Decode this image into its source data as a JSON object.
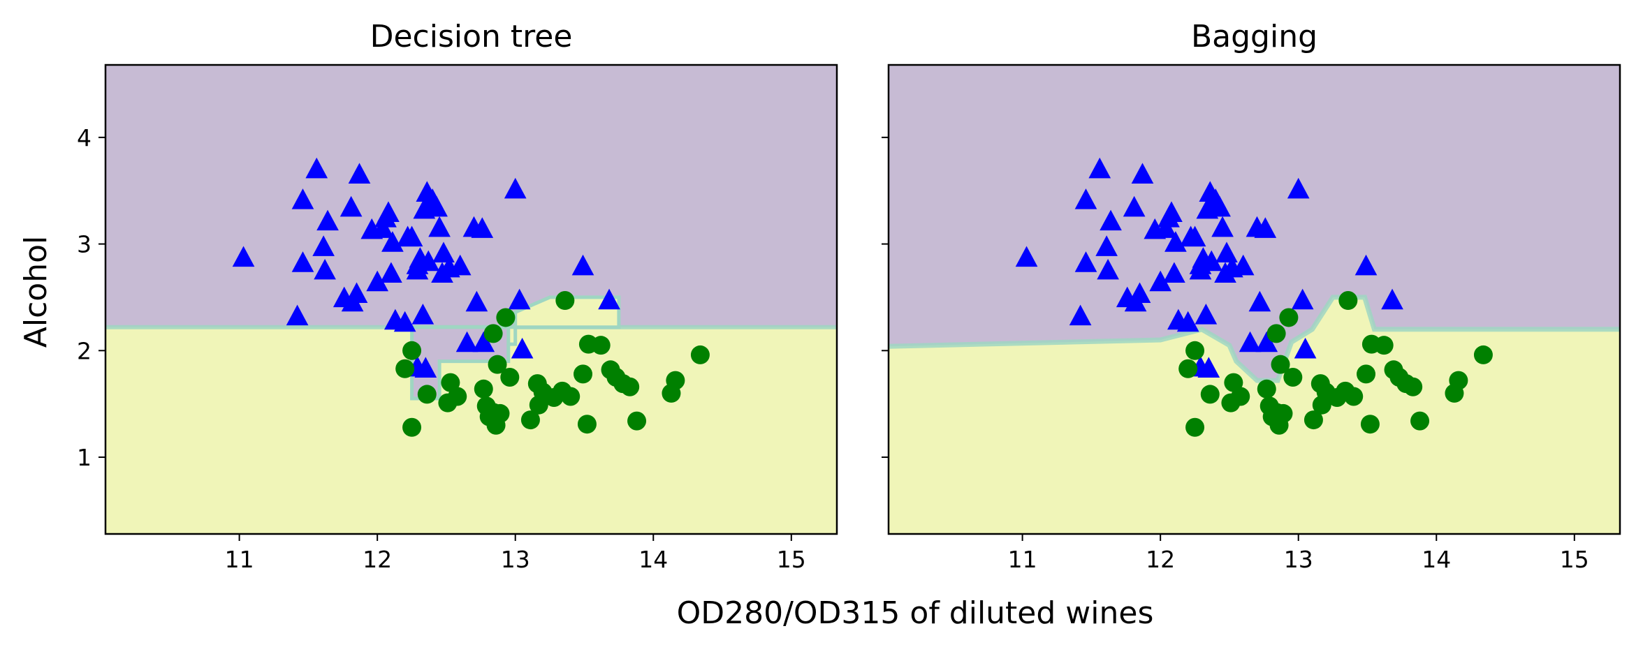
{
  "figure": {
    "xlabel": "OD280/OD315 of diluted wines",
    "ylabel": "Alcohol"
  },
  "colors": {
    "class0_region": "#c7bbd4",
    "class1_region": "#f0f5b8",
    "boundary_band": "#9fd6c2",
    "class0_marker": "#0000ff",
    "class1_marker": "#008000",
    "axes_edge": "#000000"
  },
  "chart_data": [
    {
      "type": "scatter",
      "title": "Decision tree",
      "xlim": [
        10.03,
        15.33
      ],
      "ylim": [
        0.28,
        4.68
      ],
      "xticks": [
        11,
        12,
        13,
        14,
        15
      ],
      "yticks": [
        1,
        2,
        3,
        4
      ],
      "regions": {
        "baseline_split_y": 2.22,
        "class0_above_baseline": true,
        "class1_bump_polygon": [
          [
            12.45,
            2.22
          ],
          [
            12.45,
            2.06
          ],
          [
            13.0,
            2.06
          ],
          [
            13.0,
            2.36
          ],
          [
            13.25,
            2.5
          ],
          [
            13.75,
            2.5
          ],
          [
            13.75,
            2.22
          ]
        ],
        "class0_notch_polygon": [
          [
            12.25,
            2.22
          ],
          [
            12.25,
            1.55
          ],
          [
            12.45,
            1.55
          ],
          [
            12.45,
            1.9
          ],
          [
            12.95,
            1.9
          ],
          [
            12.95,
            2.22
          ]
        ]
      },
      "series": [
        {
          "marker": "triangle",
          "points": [
            [
              11.03,
              2.86
            ],
            [
              11.42,
              2.31
            ],
            [
              11.46,
              3.4
            ],
            [
              11.56,
              3.69
            ],
            [
              11.61,
              2.96
            ],
            [
              11.64,
              3.2
            ],
            [
              11.46,
              2.81
            ],
            [
              11.62,
              2.74
            ],
            [
              11.76,
              2.48
            ],
            [
              11.82,
              2.44
            ],
            [
              11.85,
              2.52
            ],
            [
              11.87,
              3.64
            ],
            [
              11.81,
              3.33
            ],
            [
              11.96,
              3.12
            ],
            [
              12.0,
              2.63
            ],
            [
              12.04,
              3.13
            ],
            [
              12.06,
              3.23
            ],
            [
              12.08,
              3.28
            ],
            [
              12.1,
              2.71
            ],
            [
              12.11,
              3.0
            ],
            [
              12.13,
              2.27
            ],
            [
              12.2,
              2.25
            ],
            [
              12.22,
              3.05
            ],
            [
              12.25,
              3.05
            ],
            [
              12.29,
              2.79
            ],
            [
              12.29,
              2.74
            ],
            [
              12.31,
              2.85
            ],
            [
              12.33,
              2.32
            ],
            [
              12.34,
              3.31
            ],
            [
              12.36,
              3.47
            ],
            [
              12.37,
              2.82
            ],
            [
              12.4,
              3.4
            ],
            [
              12.43,
              3.33
            ],
            [
              12.45,
              3.14
            ],
            [
              12.47,
              2.71
            ],
            [
              12.48,
              2.9
            ],
            [
              12.52,
              2.76
            ],
            [
              12.6,
              2.78
            ],
            [
              12.7,
              3.14
            ],
            [
              12.72,
              2.44
            ],
            [
              12.76,
              3.13
            ],
            [
              12.77,
              2.06
            ],
            [
              13.0,
              3.5
            ],
            [
              13.03,
              2.46
            ],
            [
              13.05,
              2.0
            ],
            [
              13.49,
              2.78
            ],
            [
              13.68,
              2.46
            ],
            [
              12.29,
              1.83
            ],
            [
              12.35,
              1.82
            ],
            [
              12.65,
              2.06
            ]
          ]
        },
        {
          "marker": "circle",
          "points": [
            [
              12.2,
              1.83
            ],
            [
              12.25,
              2.0
            ],
            [
              12.25,
              1.28
            ],
            [
              12.36,
              1.59
            ],
            [
              12.51,
              1.51
            ],
            [
              12.53,
              1.7
            ],
            [
              12.58,
              1.57
            ],
            [
              12.77,
              1.64
            ],
            [
              12.79,
              1.48
            ],
            [
              12.81,
              1.38
            ],
            [
              12.84,
              1.42
            ],
            [
              12.84,
              2.16
            ],
            [
              12.86,
              1.3
            ],
            [
              12.87,
              1.87
            ],
            [
              12.89,
              1.41
            ],
            [
              12.93,
              2.31
            ],
            [
              12.96,
              1.75
            ],
            [
              13.11,
              1.35
            ],
            [
              13.16,
              1.69
            ],
            [
              13.17,
              1.49
            ],
            [
              13.2,
              1.61
            ],
            [
              13.28,
              1.56
            ],
            [
              13.34,
              1.62
            ],
            [
              13.36,
              2.47
            ],
            [
              13.4,
              1.57
            ],
            [
              13.49,
              1.78
            ],
            [
              13.52,
              1.31
            ],
            [
              13.53,
              2.06
            ],
            [
              13.62,
              2.05
            ],
            [
              13.69,
              1.82
            ],
            [
              13.73,
              1.75
            ],
            [
              13.78,
              1.69
            ],
            [
              13.83,
              1.66
            ],
            [
              13.88,
              1.34
            ],
            [
              14.13,
              1.6
            ],
            [
              14.16,
              1.72
            ],
            [
              14.34,
              1.96
            ]
          ]
        }
      ]
    },
    {
      "type": "scatter",
      "title": "Bagging",
      "xlim": [
        10.03,
        15.33
      ],
      "ylim": [
        0.28,
        4.68
      ],
      "xticks": [
        11,
        12,
        13,
        14,
        15
      ],
      "yticks": [
        1,
        2,
        3,
        4
      ],
      "regions": {
        "baseline_split_y": 2.2,
        "boundary_polyline": [
          [
            10.03,
            2.04
          ],
          [
            12.0,
            2.1
          ],
          [
            12.3,
            2.2
          ],
          [
            12.5,
            2.05
          ],
          [
            12.55,
            1.9
          ],
          [
            12.7,
            1.72
          ],
          [
            12.85,
            1.72
          ],
          [
            12.95,
            2.08
          ],
          [
            13.1,
            2.2
          ],
          [
            13.25,
            2.5
          ],
          [
            13.48,
            2.5
          ],
          [
            13.55,
            2.2
          ],
          [
            15.33,
            2.2
          ]
        ]
      },
      "series": [
        {
          "marker": "triangle",
          "points": [
            [
              11.03,
              2.86
            ],
            [
              11.42,
              2.31
            ],
            [
              11.46,
              3.4
            ],
            [
              11.56,
              3.69
            ],
            [
              11.61,
              2.96
            ],
            [
              11.64,
              3.2
            ],
            [
              11.46,
              2.81
            ],
            [
              11.62,
              2.74
            ],
            [
              11.76,
              2.48
            ],
            [
              11.82,
              2.44
            ],
            [
              11.85,
              2.52
            ],
            [
              11.87,
              3.64
            ],
            [
              11.81,
              3.33
            ],
            [
              11.96,
              3.12
            ],
            [
              12.0,
              2.63
            ],
            [
              12.04,
              3.13
            ],
            [
              12.06,
              3.23
            ],
            [
              12.08,
              3.28
            ],
            [
              12.1,
              2.71
            ],
            [
              12.11,
              3.0
            ],
            [
              12.13,
              2.27
            ],
            [
              12.2,
              2.25
            ],
            [
              12.22,
              3.05
            ],
            [
              12.25,
              3.05
            ],
            [
              12.29,
              2.79
            ],
            [
              12.29,
              2.74
            ],
            [
              12.31,
              2.85
            ],
            [
              12.33,
              2.32
            ],
            [
              12.34,
              3.31
            ],
            [
              12.36,
              3.47
            ],
            [
              12.37,
              2.82
            ],
            [
              12.4,
              3.4
            ],
            [
              12.43,
              3.33
            ],
            [
              12.45,
              3.14
            ],
            [
              12.47,
              2.71
            ],
            [
              12.48,
              2.9
            ],
            [
              12.52,
              2.76
            ],
            [
              12.6,
              2.78
            ],
            [
              12.7,
              3.14
            ],
            [
              12.72,
              2.44
            ],
            [
              12.76,
              3.13
            ],
            [
              12.77,
              2.06
            ],
            [
              13.0,
              3.5
            ],
            [
              13.03,
              2.46
            ],
            [
              13.05,
              2.0
            ],
            [
              13.49,
              2.78
            ],
            [
              13.68,
              2.46
            ],
            [
              12.29,
              1.83
            ],
            [
              12.35,
              1.82
            ],
            [
              12.65,
              2.06
            ]
          ]
        },
        {
          "marker": "circle",
          "points": [
            [
              12.2,
              1.83
            ],
            [
              12.25,
              2.0
            ],
            [
              12.25,
              1.28
            ],
            [
              12.36,
              1.59
            ],
            [
              12.51,
              1.51
            ],
            [
              12.53,
              1.7
            ],
            [
              12.58,
              1.57
            ],
            [
              12.77,
              1.64
            ],
            [
              12.79,
              1.48
            ],
            [
              12.81,
              1.38
            ],
            [
              12.84,
              1.42
            ],
            [
              12.84,
              2.16
            ],
            [
              12.86,
              1.3
            ],
            [
              12.87,
              1.87
            ],
            [
              12.89,
              1.41
            ],
            [
              12.93,
              2.31
            ],
            [
              12.96,
              1.75
            ],
            [
              13.11,
              1.35
            ],
            [
              13.16,
              1.69
            ],
            [
              13.17,
              1.49
            ],
            [
              13.2,
              1.61
            ],
            [
              13.28,
              1.56
            ],
            [
              13.34,
              1.62
            ],
            [
              13.36,
              2.47
            ],
            [
              13.4,
              1.57
            ],
            [
              13.49,
              1.78
            ],
            [
              13.52,
              1.31
            ],
            [
              13.53,
              2.06
            ],
            [
              13.62,
              2.05
            ],
            [
              13.69,
              1.82
            ],
            [
              13.73,
              1.75
            ],
            [
              13.78,
              1.69
            ],
            [
              13.83,
              1.66
            ],
            [
              13.88,
              1.34
            ],
            [
              14.13,
              1.6
            ],
            [
              14.16,
              1.72
            ],
            [
              14.34,
              1.96
            ]
          ]
        }
      ]
    }
  ]
}
